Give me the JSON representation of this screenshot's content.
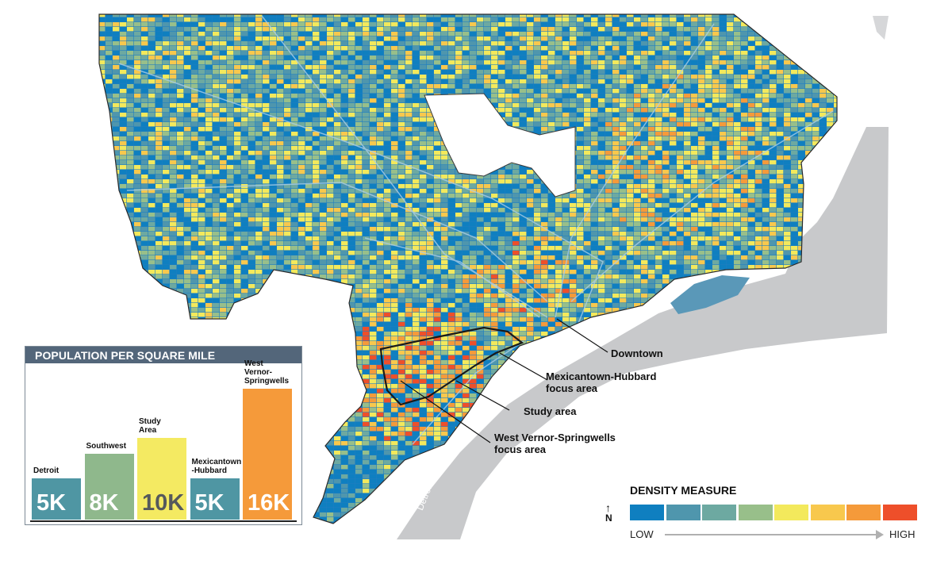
{
  "map": {
    "river_label": "Detroit River",
    "colors": {
      "water": "#c8c9cb",
      "city_base": "#1f7ec1",
      "palette": [
        "#0f7fc0",
        "#4f96ad",
        "#6da9a1",
        "#98bf8a",
        "#f3e95c",
        "#f8c84d",
        "#f59a3a",
        "#ee4f2a"
      ]
    },
    "annotations": [
      {
        "id": "downtown",
        "lines": [
          "Downtown"
        ]
      },
      {
        "id": "mexicantown",
        "lines": [
          "Mexicantown-Hubbard",
          "focus area"
        ]
      },
      {
        "id": "study",
        "lines": [
          "Study area"
        ]
      },
      {
        "id": "westvernor",
        "lines": [
          "West Vernor-Springwells",
          "focus area"
        ]
      }
    ]
  },
  "inset": {
    "title": "POPULATION PER SQUARE MILE",
    "bars": [
      {
        "name": "Detroit",
        "value_label": "5K",
        "value": 5000,
        "color": "#4f96a3"
      },
      {
        "name": "Southwest",
        "value_label": "8K",
        "value": 8000,
        "color": "#8fb88c"
      },
      {
        "name": "Study Area",
        "value_label": "10K",
        "value": 10000,
        "color": "#f4ea62"
      },
      {
        "name": "Mexicantown -Hubbard",
        "value_label": "5K",
        "value": 5000,
        "color": "#4f96a3"
      },
      {
        "name": "West Vernor- Springwells",
        "value_label": "16K",
        "value": 16000,
        "color": "#f59a3a"
      }
    ],
    "max_value": 16000
  },
  "legend": {
    "title": "DENSITY MEASURE",
    "low": "LOW",
    "high": "HIGH",
    "north": "N",
    "colors": [
      "#0f7fc0",
      "#4f96ad",
      "#6da9a1",
      "#98bf8a",
      "#f3e95c",
      "#f8c84d",
      "#f59a3a",
      "#ee4f2a"
    ]
  }
}
